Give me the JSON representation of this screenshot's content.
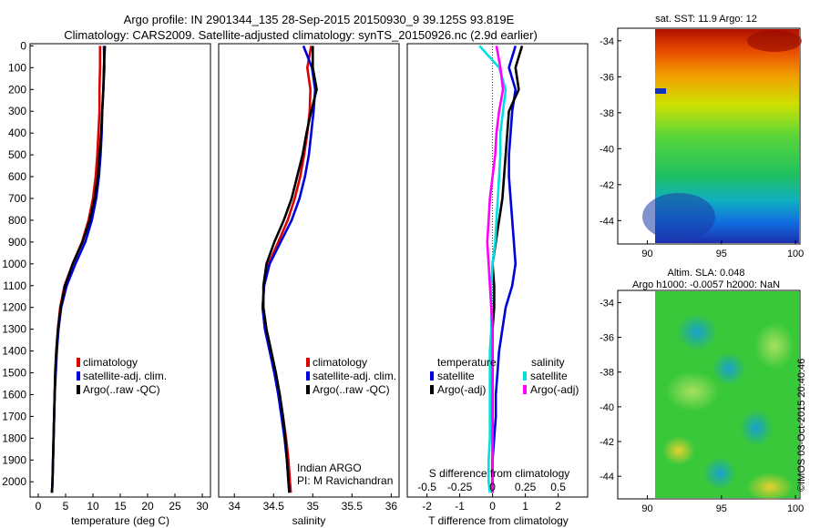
{
  "header": {
    "line1": "Argo profile: IN 2901344_135 28-Sep-2015 20150930_9 39.125S 93.819E",
    "line2": "Climatology: CARS2009. Satellite-adjusted climatology: synTS_20150926.nc (2.9d earlier)"
  },
  "colors": {
    "climatology": "#dd0000",
    "satellite": "#0000dd",
    "argo": "#000000",
    "sat_s": "#00e0e0",
    "argo_s": "#ff00ff"
  },
  "chart_data": [
    {
      "type": "line",
      "panel": "temperature",
      "xlabel": "temperature (deg C)",
      "xticks": [
        "0",
        "5",
        "10",
        "15",
        "20",
        "25",
        "30"
      ],
      "xlim": [
        -1.5,
        31.5
      ],
      "yticks": [
        "0",
        "100",
        "200",
        "300",
        "400",
        "500",
        "600",
        "700",
        "800",
        "900",
        "1000",
        "1100",
        "1200",
        "1300",
        "1400",
        "1500",
        "1600",
        "1700",
        "1800",
        "1900",
        "2000"
      ],
      "ylim": [
        2070,
        -10
      ],
      "series": [
        {
          "name": "climatology",
          "x": [
            11.3,
            11.3,
            11.2,
            11.2,
            11.0,
            10.8,
            10.5,
            10.0,
            9.2,
            8.0,
            6.3,
            4.8,
            4.0,
            3.6,
            3.3,
            3.1,
            3.0,
            2.9,
            2.8,
            2.7,
            2.6,
            2.5
          ],
          "y": [
            0,
            100,
            200,
            300,
            400,
            500,
            600,
            700,
            800,
            900,
            1000,
            1100,
            1200,
            1300,
            1400,
            1500,
            1600,
            1700,
            1800,
            1900,
            2000,
            2050
          ]
        },
        {
          "name": "satellite-adj. clim.",
          "x": [
            12.0,
            12.1,
            11.9,
            11.7,
            11.6,
            11.4,
            11.1,
            10.6,
            9.8,
            8.6,
            6.8,
            5.2,
            4.2,
            3.7,
            3.4,
            3.2,
            3.0,
            2.9,
            2.8,
            2.7,
            2.6,
            2.5
          ],
          "y": [
            0,
            100,
            200,
            300,
            400,
            500,
            600,
            700,
            800,
            900,
            1000,
            1100,
            1200,
            1300,
            1400,
            1500,
            1600,
            1700,
            1800,
            1900,
            2000,
            2050
          ]
        },
        {
          "name": "Argo(..raw -QC)",
          "x": [
            12.2,
            12.0,
            11.9,
            11.7,
            11.5,
            11.2,
            10.9,
            10.3,
            9.4,
            8.1,
            6.3,
            4.9,
            4.1,
            3.6,
            3.3,
            3.1,
            3.0,
            2.9,
            2.8,
            2.7,
            2.6,
            2.5
          ],
          "y": [
            0,
            100,
            200,
            300,
            400,
            500,
            600,
            700,
            800,
            900,
            1000,
            1100,
            1200,
            1300,
            1400,
            1500,
            1600,
            1700,
            1800,
            1900,
            2000,
            2050
          ]
        }
      ],
      "legend": [
        "climatology",
        "satellite-adj. clim.",
        "Argo(..raw -QC)"
      ]
    },
    {
      "type": "line",
      "panel": "salinity",
      "xlabel": "salinity",
      "xticks": [
        "34",
        "34.5",
        "35",
        "35.5",
        "36"
      ],
      "xlim": [
        33.8,
        36.1
      ],
      "ylim": [
        2070,
        -10
      ],
      "series": [
        {
          "name": "climatology",
          "x": [
            34.98,
            34.93,
            34.97,
            34.96,
            34.93,
            34.89,
            34.84,
            34.77,
            34.68,
            34.56,
            34.44,
            34.38,
            34.36,
            34.39,
            34.45,
            34.51,
            34.57,
            34.62,
            34.66,
            34.69,
            34.71,
            34.72
          ],
          "y": [
            0,
            100,
            200,
            300,
            400,
            500,
            600,
            700,
            800,
            900,
            1000,
            1100,
            1200,
            1300,
            1400,
            1500,
            1600,
            1700,
            1800,
            1900,
            2000,
            2050
          ]
        },
        {
          "name": "satellite-adj. clim.",
          "x": [
            34.88,
            34.99,
            35.03,
            35.01,
            34.98,
            34.95,
            34.9,
            34.83,
            34.73,
            34.59,
            34.45,
            34.38,
            34.36,
            34.39,
            34.45,
            34.51,
            34.56,
            34.6,
            34.64,
            34.67,
            34.69,
            34.7
          ],
          "y": [
            0,
            100,
            200,
            300,
            400,
            500,
            600,
            700,
            800,
            900,
            1000,
            1100,
            1200,
            1300,
            1400,
            1500,
            1600,
            1700,
            1800,
            1900,
            2000,
            2050
          ]
        },
        {
          "name": "Argo(..raw -QC)",
          "x": [
            35.0,
            35.0,
            35.05,
            34.98,
            34.92,
            34.87,
            34.8,
            34.73,
            34.63,
            34.51,
            34.41,
            34.37,
            34.37,
            34.41,
            34.47,
            34.53,
            34.58,
            34.62,
            34.65,
            34.67,
            34.69,
            34.7
          ],
          "y": [
            0,
            100,
            200,
            300,
            400,
            500,
            600,
            700,
            800,
            900,
            1000,
            1100,
            1200,
            1300,
            1400,
            1500,
            1600,
            1700,
            1800,
            1900,
            2000,
            2050
          ]
        }
      ],
      "legend": [
        "climatology",
        "satellite-adj. clim.",
        "Argo(..raw -QC)"
      ],
      "annotation": [
        "Indian ARGO",
        "PI: M Ravichandran"
      ]
    },
    {
      "type": "line",
      "panel": "difference",
      "xlabel": "T difference from climatology",
      "xticks": [
        "-2",
        "-1",
        "0",
        "1",
        "2"
      ],
      "xlim": [
        -2.6,
        2.9
      ],
      "xlabel2": "S difference from climatology",
      "xticks2": [
        "-0.5",
        "-0.25",
        "0",
        "0.25",
        "0.5"
      ],
      "ylim": [
        2070,
        -10
      ],
      "legend_headers": [
        "temperature",
        "salinity"
      ],
      "legend_t": [
        "satellite",
        "Argo(-adj)"
      ],
      "legend_s": [
        "satellite",
        "Argo(-adj)"
      ],
      "series": [
        {
          "name": "T satellite",
          "x": [
            0.7,
            0.5,
            0.7,
            0.6,
            0.55,
            0.5,
            0.5,
            0.55,
            0.6,
            0.65,
            0.7,
            0.6,
            0.4,
            0.3,
            0.2,
            0.15,
            0.1,
            0.1,
            0.05,
            0.0,
            0.0,
            0.0
          ],
          "y": [
            0,
            100,
            200,
            300,
            400,
            500,
            600,
            700,
            800,
            900,
            1000,
            1100,
            1200,
            1300,
            1400,
            1500,
            1600,
            1700,
            1800,
            1900,
            2000,
            2050
          ]
        },
        {
          "name": "T Argo(-adj)",
          "x": [
            0.9,
            0.7,
            0.8,
            0.5,
            0.45,
            0.4,
            0.35,
            0.3,
            0.2,
            0.1,
            0.0,
            0.05,
            0.05,
            0.0,
            0.0,
            0.0,
            0.0,
            0.0,
            0.0,
            0.0,
            0.0,
            0.0
          ],
          "y": [
            0,
            100,
            200,
            300,
            400,
            500,
            600,
            700,
            800,
            900,
            1000,
            1100,
            1200,
            1300,
            1400,
            1500,
            1600,
            1700,
            1800,
            1900,
            2000,
            2050
          ]
        },
        {
          "name": "S satellite",
          "x": [
            -0.1,
            0.05,
            0.1,
            0.08,
            0.06,
            0.06,
            0.05,
            0.04,
            0.03,
            0.02,
            0.0,
            -0.01,
            -0.01,
            -0.01,
            -0.02,
            -0.02,
            -0.02,
            -0.02,
            -0.02,
            -0.03,
            -0.03,
            -0.02
          ],
          "y": [
            0,
            100,
            200,
            300,
            400,
            500,
            600,
            700,
            800,
            900,
            1000,
            1100,
            1200,
            1300,
            1400,
            1500,
            1600,
            1700,
            1800,
            1900,
            2000,
            2050
          ]
        },
        {
          "name": "S Argo(-adj)",
          "x": [
            0.03,
            0.06,
            0.08,
            0.05,
            0.03,
            0.02,
            0.0,
            -0.02,
            -0.03,
            -0.04,
            -0.03,
            -0.02,
            -0.01,
            0.0,
            0.0,
            0.0,
            0.0,
            0.0,
            0.0,
            0.0,
            0.0,
            0.0
          ],
          "y": [
            0,
            100,
            200,
            300,
            400,
            500,
            600,
            700,
            800,
            900,
            1000,
            1100,
            1200,
            1300,
            1400,
            1500,
            1600,
            1700,
            1800,
            1900,
            2000,
            2050
          ]
        }
      ]
    },
    {
      "type": "heatmap",
      "panel": "sst_map",
      "title": "sat. SST: 11.9  Argo: 12",
      "xticks": [
        "90",
        "95",
        "100"
      ],
      "xlim": [
        88,
        100.3
      ],
      "yticks": [
        "-34",
        "-36",
        "-38",
        "-40",
        "-42",
        "-44"
      ],
      "ylim": [
        -45.3,
        -33.3
      ]
    },
    {
      "type": "heatmap",
      "panel": "sla_map",
      "title": "Altim. SLA: 0.048",
      "subtitle": "Argo h1000: -0.0057 h2000: NaN",
      "xticks": [
        "90",
        "95",
        "100"
      ],
      "xlim": [
        88,
        100.3
      ],
      "yticks": [
        "-34",
        "-36",
        "-38",
        "-40",
        "-42",
        "-44"
      ],
      "ylim": [
        -45.3,
        -33.3
      ]
    }
  ],
  "footer": {
    "stamp": "©IMOS 03-Oct-2015 20:40:46"
  }
}
